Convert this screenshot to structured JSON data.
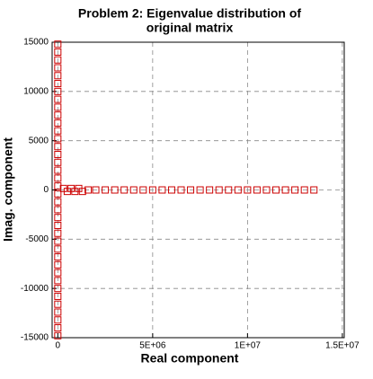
{
  "chart_data": {
    "type": "scatter",
    "title": [
      "Problem 2:  Eigenvalue distribution of",
      "original matrix"
    ],
    "x_label": "Real component",
    "y_label": "Imag. component",
    "series": [
      {
        "color": "#cc0000",
        "x": [
          0,
          0,
          0,
          0,
          0,
          0,
          0,
          0,
          0,
          0,
          0,
          0,
          0,
          0,
          0,
          0,
          0,
          0,
          0,
          0,
          0,
          0,
          0,
          0,
          0,
          0,
          0,
          0,
          0,
          0,
          0,
          0,
          0,
          0,
          0,
          0,
          0,
          0,
          300000,
          500000,
          700000,
          900000,
          1100000,
          1300000,
          1600000,
          2000000,
          2500000,
          3000000,
          3500000,
          4000000,
          4500000,
          5000000,
          5500000,
          6000000,
          6500000,
          7000000,
          7500000,
          8000000,
          8500000,
          9000000,
          9500000,
          10000000,
          10500000,
          11000000,
          11500000,
          12000000,
          12500000,
          13000000,
          13500000
        ],
        "y": [
          -14800,
          -14000,
          -13200,
          -12400,
          -11600,
          -10800,
          -10000,
          -9200,
          -8400,
          -7600,
          -6800,
          -6000,
          -5200,
          -4400,
          -3600,
          -2800,
          -2000,
          -1200,
          -400,
          400,
          1200,
          2000,
          2800,
          3600,
          4400,
          5200,
          6000,
          6800,
          7600,
          8400,
          9200,
          10000,
          10800,
          11600,
          12400,
          13200,
          14000,
          14800,
          150,
          -150,
          150,
          -150,
          150,
          -150,
          0,
          0,
          0,
          0,
          0,
          0,
          0,
          0,
          0,
          0,
          0,
          0,
          0,
          0,
          0,
          0,
          0,
          0,
          0,
          0,
          0,
          0,
          0,
          0,
          0
        ]
      }
    ],
    "xlim": [
      -300000,
      15100000
    ],
    "xticks": [
      0,
      {
        "value": 5000000,
        "label": "5E+06"
      },
      {
        "value": 10000000,
        "label": "1E+07"
      },
      {
        "value": 15000000,
        "label": "1.5E+07"
      }
    ],
    "ylim": [
      -15000,
      15000
    ],
    "yticks": [
      -15000,
      -10000,
      -5000,
      0,
      5000,
      10000,
      15000
    ],
    "grid": true
  }
}
